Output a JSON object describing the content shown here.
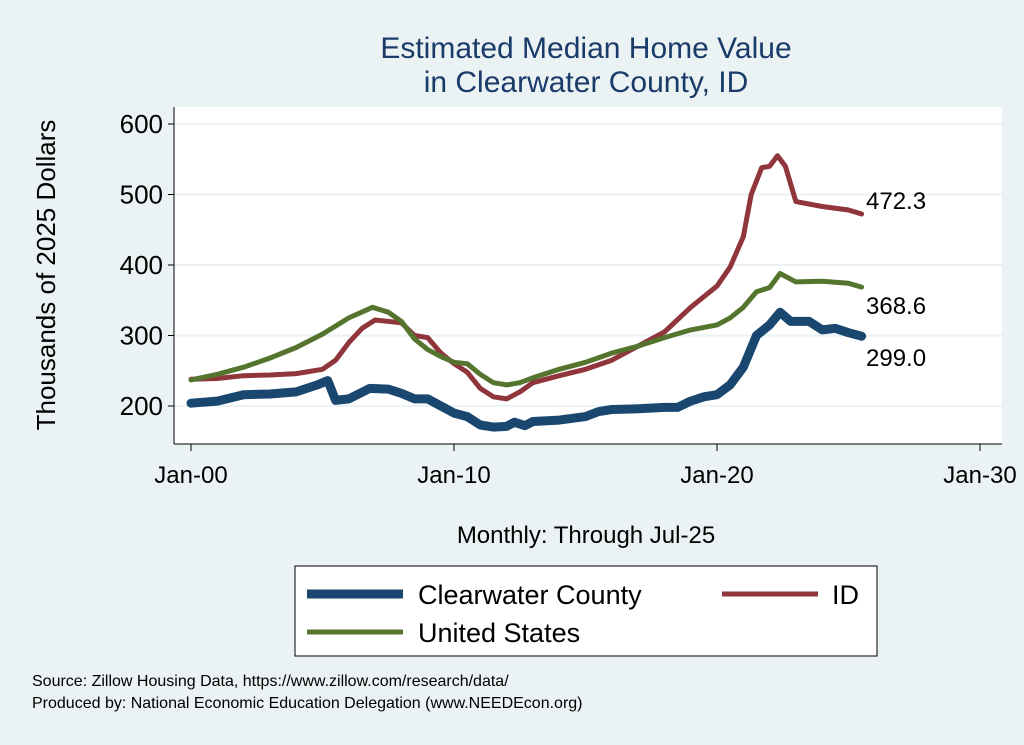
{
  "chart_data": {
    "type": "line",
    "title": [
      "Estimated Median Home Value",
      "in Clearwater County, ID"
    ],
    "xlabel": "Monthly: Through Jul-25",
    "ylabel": "Thousands of 2025 Dollars",
    "xlim": [
      1999.6,
      2030.5
    ],
    "ylim": [
      145,
      625
    ],
    "xticks": [
      {
        "v": 2000,
        "label": "Jan-00"
      },
      {
        "v": 2010,
        "label": "Jan-10"
      },
      {
        "v": 2020,
        "label": "Jan-20"
      },
      {
        "v": 2030,
        "label": "Jan-30"
      }
    ],
    "yticks": [
      200,
      300,
      400,
      500,
      600
    ],
    "grid": true,
    "legend_position": "bottom",
    "series": [
      {
        "name": "Clearwater County",
        "color": "#1a476f",
        "width": 9,
        "end_label": "299.0",
        "x": [
          2000,
          2001,
          2002,
          2003,
          2004,
          2004.8,
          2005.2,
          2005.5,
          2006,
          2006.8,
          2007.5,
          2008,
          2008.5,
          2009,
          2009.5,
          2010,
          2010.5,
          2011,
          2011.5,
          2012,
          2012.3,
          2012.7,
          2013,
          2014,
          2015,
          2015.5,
          2016,
          2017,
          2018,
          2018.5,
          2019,
          2019.5,
          2020,
          2020.5,
          2021,
          2021.5,
          2022,
          2022.4,
          2022.8,
          2023.5,
          2024,
          2024.5,
          2025,
          2025.5
        ],
        "y": [
          204,
          207,
          216,
          217,
          220,
          230,
          236,
          208,
          210,
          225,
          224,
          218,
          210,
          210,
          200,
          190,
          185,
          173,
          170,
          171,
          177,
          172,
          178,
          180,
          185,
          192,
          195,
          196,
          198,
          198,
          207,
          213,
          216,
          230,
          255,
          300,
          315,
          333,
          320,
          320,
          308,
          310,
          304,
          299
        ]
      },
      {
        "name": "ID",
        "color": "#90353b",
        "width": 5,
        "end_label": "472.3",
        "x": [
          2000,
          2001,
          2002,
          2003,
          2004,
          2005,
          2005.5,
          2006,
          2006.5,
          2007,
          2008,
          2008.5,
          2009,
          2009.5,
          2010,
          2010.5,
          2011,
          2011.5,
          2012,
          2012.5,
          2013,
          2014,
          2015,
          2016,
          2017,
          2018,
          2019,
          2020,
          2020.5,
          2021,
          2021.3,
          2021.7,
          2022,
          2022.3,
          2022.6,
          2023,
          2024,
          2025,
          2025.5
        ],
        "y": [
          238,
          239,
          243,
          244,
          246,
          252,
          265,
          290,
          310,
          322,
          318,
          300,
          297,
          275,
          260,
          248,
          225,
          213,
          210,
          220,
          233,
          243,
          252,
          265,
          285,
          305,
          340,
          370,
          397,
          440,
          500,
          538,
          540,
          555,
          540,
          490,
          483,
          478,
          472.3
        ]
      },
      {
        "name": "United States",
        "color": "#55752f",
        "width": 5,
        "end_label": "368.6",
        "x": [
          2000,
          2001,
          2002,
          2003,
          2004,
          2005,
          2006,
          2006.9,
          2007.5,
          2008,
          2008.5,
          2009,
          2009.5,
          2010,
          2010.5,
          2011,
          2011.5,
          2012,
          2012.5,
          2013,
          2014,
          2015,
          2016,
          2017,
          2018,
          2019,
          2020,
          2020.5,
          2021,
          2021.5,
          2022,
          2022.4,
          2023,
          2024,
          2025,
          2025.5
        ],
        "y": [
          237,
          245,
          255,
          268,
          283,
          302,
          325,
          340,
          333,
          320,
          295,
          280,
          270,
          262,
          260,
          245,
          233,
          230,
          233,
          240,
          252,
          262,
          275,
          285,
          297,
          308,
          315,
          325,
          340,
          362,
          368,
          388,
          376,
          377,
          374,
          368.6
        ]
      }
    ]
  },
  "source": "Source: Zillow Housing Data, https://www.zillow.com/research/data/",
  "produced_by": "Produced by: National Economic Education Delegation (www.NEEDEcon.org)"
}
